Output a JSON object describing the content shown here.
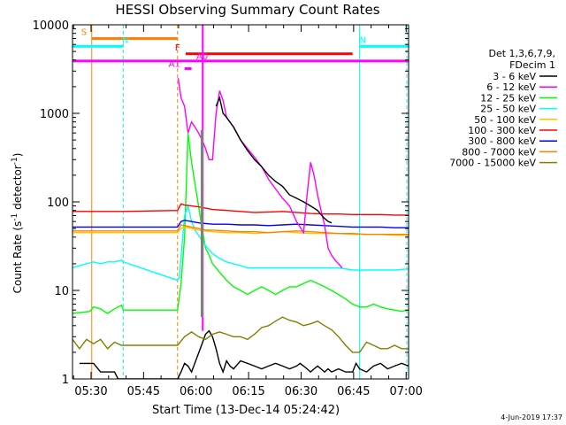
{
  "chart_data": {
    "type": "line",
    "title": "HESSI Observing Summary Count Rates",
    "xlabel": "Start Time (13-Dec-14 05:24:42)",
    "ylabel": "Count Rate (s⁻¹ detector⁻¹)",
    "ylabel_main": "Count Rate (s",
    "ylabel_exp1": "-1",
    "ylabel_mid": " detector",
    "ylabel_exp2": "-1",
    "ylabel_end": ")",
    "yscale": "log",
    "ylim": [
      1,
      10000
    ],
    "xlim_minutes": [
      0,
      96
    ],
    "x_tick_labels": [
      "05:30",
      "05:45",
      "06:00",
      "06:15",
      "06:30",
      "06:45",
      "07:00"
    ],
    "x_tick_minutes": [
      5.3,
      20.3,
      35.3,
      50.3,
      65.3,
      80.3,
      95.3
    ],
    "y_tick_labels": [
      "1",
      "10",
      "100",
      "1000",
      "10000"
    ],
    "y_tick_values": [
      1,
      10,
      100,
      1000,
      10000
    ],
    "legend_title": [
      "Det 1,3,6,7,9,",
      "FDecim 1"
    ],
    "legend_position": "right",
    "footer_date": "4-Jun-2019 17:37",
    "series": [
      {
        "name": "3 - 6 keV",
        "color": "#000000",
        "x": [
          2,
          6,
          8,
          12,
          13,
          30,
          31,
          32,
          33,
          34,
          37,
          38,
          39,
          40,
          41,
          42,
          43,
          44,
          45,
          46,
          48,
          50,
          52,
          54,
          56,
          58,
          60,
          62,
          64,
          65,
          66,
          67,
          68,
          69,
          70,
          71,
          72,
          73,
          74,
          76,
          78,
          80,
          81,
          82,
          84,
          86,
          88,
          90,
          92,
          94,
          96
        ],
        "y": [
          1.5,
          1.5,
          1.2,
          1.2,
          1,
          1,
          1.2,
          1.5,
          1.4,
          1.2,
          2.5,
          3.2,
          3.5,
          3.0,
          2.2,
          1.5,
          1.2,
          1.6,
          1.4,
          1.3,
          1.6,
          1.5,
          1.4,
          1.3,
          1.4,
          1.5,
          1.4,
          1.3,
          1.4,
          1.5,
          1.4,
          1.3,
          1.2,
          1.3,
          1.4,
          1.3,
          1.2,
          1.3,
          1.2,
          1.3,
          1.2,
          1.2,
          1.5,
          1.3,
          1.2,
          1.4,
          1.5,
          1.3,
          1.4,
          1.5,
          1.4
        ]
      },
      {
        "name": "6 - 12 keV",
        "color": "#ff00ff",
        "x": [],
        "y": []
      },
      {
        "name": "12 - 25 keV",
        "color": "#00ff00",
        "x": [
          0,
          5,
          6,
          8,
          10,
          12,
          14,
          14.5,
          30,
          31,
          32,
          33,
          34,
          35,
          36,
          37,
          38,
          39,
          40,
          41,
          42,
          44,
          46,
          48,
          50,
          52,
          54,
          56,
          58,
          60,
          62,
          64,
          66,
          68,
          70,
          72,
          74,
          76,
          78,
          80,
          82,
          84,
          86,
          88,
          90,
          92,
          94,
          96
        ],
        "y": [
          5.5,
          5.8,
          6.5,
          6.2,
          5.5,
          6.2,
          6.8,
          6,
          6,
          12,
          40,
          600,
          280,
          160,
          90,
          50,
          30,
          25,
          20,
          18,
          16,
          13,
          11,
          10,
          9,
          10,
          11,
          10,
          9,
          10,
          11,
          11,
          12,
          13,
          12,
          11,
          10,
          9,
          8,
          7,
          6.5,
          6.5,
          7,
          6.5,
          6.2,
          6,
          5.8,
          6
        ]
      },
      {
        "name": "25 - 50 keV",
        "color": "#00ffff",
        "x": [
          0,
          2,
          4,
          6,
          8,
          10,
          12,
          14,
          14.5,
          30,
          30.5,
          32,
          33,
          34,
          35,
          36,
          38,
          40,
          42,
          44,
          46,
          48,
          50,
          52,
          56,
          60,
          64,
          68,
          72,
          76,
          80,
          84,
          88,
          92,
          96
        ],
        "y": [
          18,
          19,
          20,
          21,
          20,
          21,
          21,
          22,
          21,
          13,
          14,
          70,
          90,
          60,
          48,
          42,
          32,
          26,
          23,
          21,
          20,
          19,
          18,
          18,
          18,
          18,
          18,
          18,
          18,
          18,
          17,
          17,
          17,
          17,
          17.5
        ]
      },
      {
        "name": "50 - 100 keV",
        "color": "#ffc000",
        "x": [
          0,
          14.5,
          30,
          31,
          32,
          34,
          36,
          38,
          40,
          44,
          48,
          52,
          56,
          60,
          64,
          68,
          72,
          76,
          80,
          84,
          88,
          92,
          96
        ],
        "y": [
          45,
          45,
          45,
          50,
          52,
          50,
          48,
          47,
          46,
          45,
          45,
          44,
          45,
          46,
          45,
          44,
          44,
          44,
          43,
          43,
          43,
          42,
          42
        ]
      },
      {
        "name": "100 - 300 keV",
        "color": "#ff0000",
        "x": [
          0,
          14.5,
          30,
          31,
          32,
          34,
          36,
          38,
          40,
          44,
          48,
          52,
          56,
          60,
          64,
          68,
          72,
          76,
          80,
          84,
          88,
          92,
          96
        ],
        "y": [
          78,
          78,
          80,
          95,
          92,
          90,
          88,
          85,
          82,
          80,
          78,
          76,
          77,
          78,
          76,
          74,
          73,
          73,
          72,
          72,
          72,
          71,
          71
        ]
      },
      {
        "name": "300 - 800 keV",
        "color": "#0000ff",
        "x": [
          0,
          14.5,
          30,
          31,
          32,
          34,
          36,
          38,
          40,
          44,
          48,
          52,
          56,
          60,
          64,
          68,
          72,
          76,
          80,
          84,
          88,
          92,
          96
        ],
        "y": [
          52,
          52,
          52,
          60,
          62,
          60,
          58,
          57,
          56,
          56,
          55,
          55,
          54,
          55,
          56,
          55,
          54,
          53,
          52,
          52,
          52,
          51,
          51
        ]
      },
      {
        "name": "800 - 7000 keV",
        "color": "#ff8000",
        "x": [
          0,
          14.5,
          30,
          31,
          32,
          34,
          36,
          38,
          40,
          44,
          48,
          52,
          56,
          60,
          64,
          68,
          72,
          76,
          80,
          84,
          88,
          92,
          96
        ],
        "y": [
          47,
          47,
          47,
          55,
          54,
          52,
          50,
          48,
          48,
          47,
          46,
          46,
          45,
          46,
          47,
          46,
          45,
          44,
          44,
          43,
          43,
          43,
          43
        ]
      },
      {
        "name": "7000 - 15000 keV",
        "color": "#808000",
        "x": [
          0,
          2,
          4,
          6,
          8,
          10,
          12,
          14,
          14.5,
          30,
          32,
          34,
          36,
          38,
          40,
          42,
          44,
          46,
          48,
          50,
          52,
          54,
          56,
          58,
          60,
          62,
          64,
          66,
          68,
          70,
          72,
          74,
          76,
          78,
          80,
          82,
          84,
          86,
          88,
          90,
          92,
          94,
          96
        ],
        "y": [
          2.8,
          2.2,
          2.8,
          2.5,
          2.8,
          2.2,
          2.6,
          2.4,
          2.4,
          2.4,
          3.0,
          3.4,
          3.0,
          2.8,
          3.2,
          3.4,
          3.2,
          3.0,
          3.0,
          2.8,
          3.2,
          3.8,
          4.0,
          4.5,
          5.0,
          4.6,
          4.4,
          4.0,
          4.2,
          4.5,
          4.0,
          3.6,
          3.0,
          2.4,
          2.0,
          2.0,
          2.6,
          2.4,
          2.2,
          2.2,
          2.4,
          2.2,
          2.2
        ]
      }
    ],
    "annotations": [
      {
        "label": "S",
        "color": "#ff8000",
        "x_start": 5.5,
        "x_end": 30,
        "y": 7000
      },
      {
        "label": "N",
        "color": "#00ffff",
        "x_start": 0,
        "x_end": 14.5,
        "y": 5700
      },
      {
        "label": "N",
        "color": "#00ffff",
        "x_start": 82,
        "x_end": 96,
        "y": 5700
      },
      {
        "label": "F",
        "color": "#ff0000",
        "x_start": 32.3,
        "x_end": 80,
        "y": 4700
      },
      {
        "label": "A0",
        "color": "#ff00ff",
        "x_start": 0,
        "x_end": 96,
        "y": 3900
      },
      {
        "label": "A1",
        "color": "#ff00ff",
        "x_start": 32,
        "x_end": 34,
        "y": 3200
      }
    ]
  }
}
